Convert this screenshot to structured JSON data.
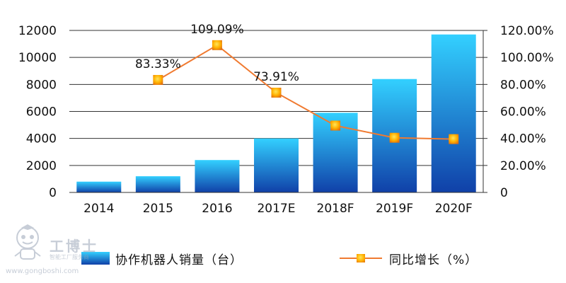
{
  "chart_data": {
    "type": "bar+line",
    "categories": [
      "2014",
      "2015",
      "2016",
      "2017E",
      "2018F",
      "2019F",
      "2020F"
    ],
    "series": [
      {
        "name": "协作机器人销量（台）",
        "type": "bar",
        "axis": "left",
        "values": [
          800,
          1200,
          2400,
          4000,
          5900,
          8400,
          11700
        ]
      },
      {
        "name": "同比增长（%）",
        "type": "line",
        "axis": "right",
        "values": [
          null,
          83.33,
          109.09,
          73.91,
          49.5,
          40.5,
          39.5
        ],
        "data_labels": [
          null,
          "83.33%",
          "109.09%",
          "73.91%",
          null,
          null,
          null
        ]
      }
    ],
    "y_left": {
      "ylim": [
        0,
        12000
      ],
      "ticks": [
        "0",
        "2000",
        "4000",
        "6000",
        "8000",
        "10000",
        "12000"
      ]
    },
    "y_right": {
      "ylim": [
        0,
        120
      ],
      "ticks": [
        "0",
        "20.00%",
        "40.00%",
        "60.00%",
        "80.00%",
        "100.00%",
        "120.00%"
      ]
    },
    "grid": true,
    "legend": "bottom",
    "colors": {
      "bar_top": "#33d0ff",
      "bar_bottom": "#1040a8",
      "line": "#f07a30",
      "marker": "#ffb000",
      "grid": "#333333"
    }
  },
  "legend": {
    "bar_label": "协作机器人销量（台）",
    "line_label": "同比增长（%）"
  },
  "watermark": {
    "title": "工博士",
    "subtitle": "智能工厂服务商",
    "url": "www.gongboshi.com"
  }
}
